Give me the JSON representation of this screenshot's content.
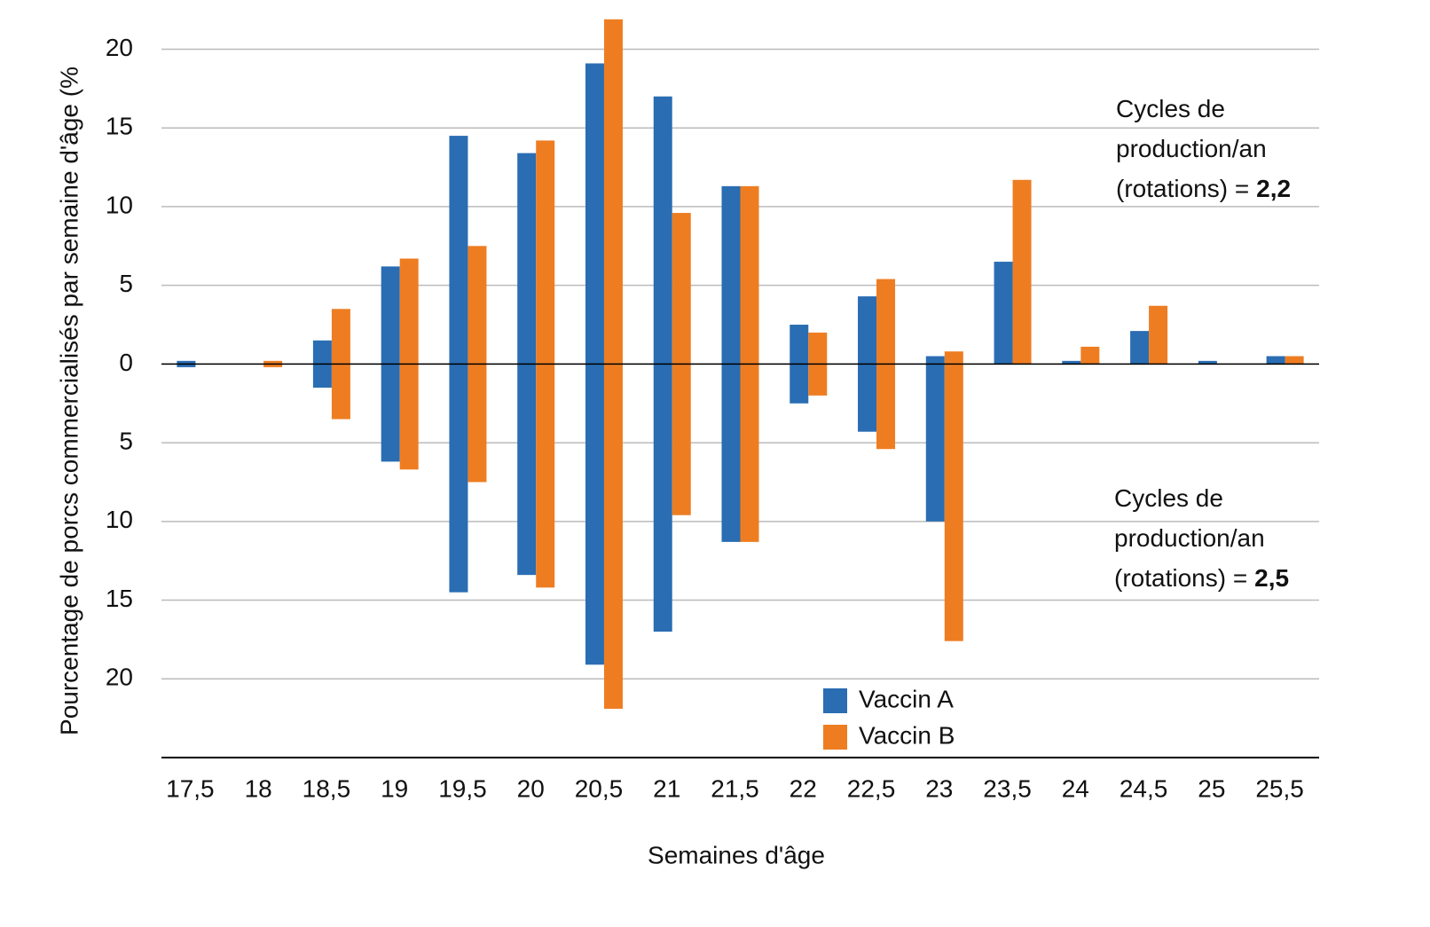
{
  "chart_data": {
    "type": "mirror-bar",
    "y_axis_label": "Pourcentage de porcs commercialisés par semaine d'âge (%",
    "x_axis_label": "Semaines d'âge",
    "categories": [
      "17,5",
      "18",
      "18,5",
      "19",
      "19,5",
      "20",
      "20,5",
      "21",
      "21,5",
      "22",
      "22,5",
      "23",
      "23,5",
      "24",
      "24,5",
      "25",
      "25,5"
    ],
    "series": [
      {
        "name": "Vaccin A",
        "color": "#2a6db3",
        "values": [
          0.2,
          0,
          1.5,
          6.2,
          14.5,
          13.4,
          19.1,
          17,
          11.3,
          2.5,
          4.3,
          0.5,
          6.5,
          0.2,
          2.1,
          0.2,
          0.5
        ],
        "lower_values": [
          -0.2,
          0,
          -1.5,
          -6.2,
          -14.5,
          -13.4,
          -19.1,
          -17,
          -11.3,
          -2.5,
          -4.3,
          -10,
          0,
          0,
          0,
          0,
          0
        ]
      },
      {
        "name": "Vaccin B",
        "color": "#ee7d22",
        "values": [
          0,
          0.2,
          3.5,
          6.7,
          7.5,
          14.2,
          21.9,
          9.6,
          11.3,
          2,
          5.4,
          0.8,
          11.7,
          1.1,
          3.7,
          0,
          0.5
        ],
        "lower_values": [
          0,
          -0.2,
          -3.5,
          -6.7,
          -7.5,
          -14.2,
          -21.9,
          -9.6,
          -11.3,
          -2,
          -5.4,
          -17.6,
          0,
          0,
          0,
          0,
          0
        ]
      }
    ],
    "ylim": [
      -25,
      22
    ],
    "yticks": [
      20,
      15,
      10,
      5,
      0,
      {
        "value": -5,
        "label": "5"
      },
      {
        "value": -10,
        "label": "10"
      },
      {
        "value": -15,
        "label": "15"
      },
      {
        "value": -20,
        "label": "20"
      }
    ],
    "grid": true,
    "annotations": [
      {
        "text": "Cycles de production/an (rotations) =",
        "emphasis": "2,2"
      },
      {
        "text": "Cycles de production/an (rotations) =",
        "emphasis": "2,5"
      }
    ]
  }
}
